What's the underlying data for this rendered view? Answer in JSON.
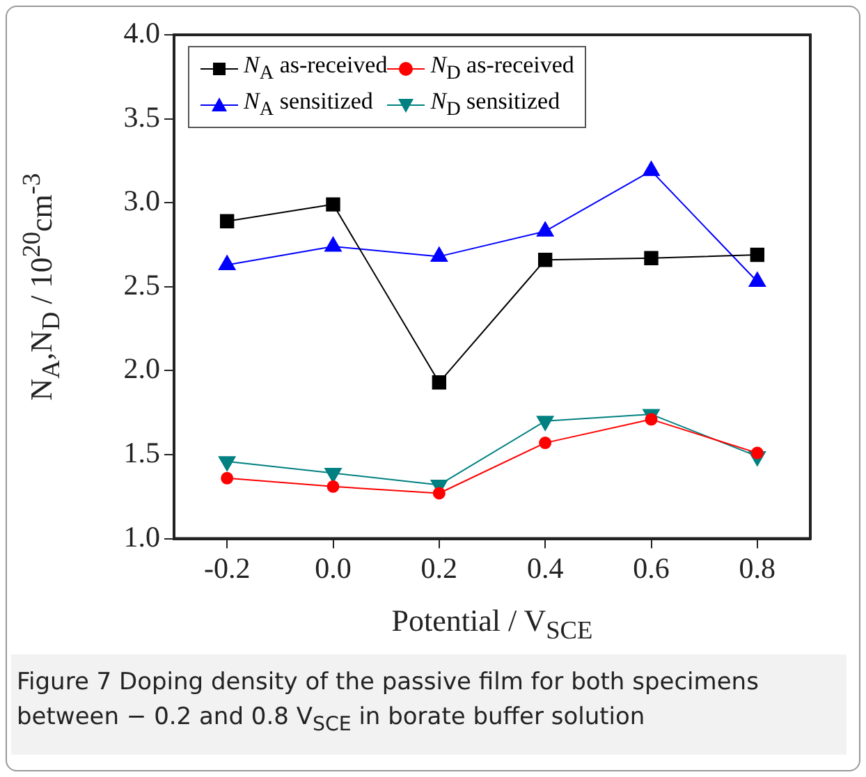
{
  "chart_data": {
    "type": "line",
    "xlabel": "Potential / V$_{SCE}$",
    "ylabel": "N$_{A}$,N$_{D}$ / 10$^{20}$cm$^{-3}$",
    "x": [
      -0.2,
      0,
      0.2,
      0.4,
      0.6,
      0.8
    ],
    "series": [
      {
        "name": "N$_{A}$  as-received",
        "color": "#000000",
        "marker": "square",
        "values": [
          2.89,
          2.99,
          1.93,
          2.66,
          2.67,
          2.69
        ]
      },
      {
        "name": "N$_{D}$  as-received",
        "color": "#ff0000",
        "marker": "circle",
        "values": [
          1.36,
          1.31,
          1.27,
          1.57,
          1.71,
          1.51
        ]
      },
      {
        "name": "N$_{A}$ sensitized",
        "color": "#0000ff",
        "marker": "triangle",
        "values": [
          2.63,
          2.74,
          2.68,
          2.83,
          3.19,
          2.53
        ]
      },
      {
        "name": "N$_{D}$ sensitized",
        "color": "#008080",
        "marker": "triangle-down",
        "values": [
          1.46,
          1.39,
          1.32,
          1.7,
          1.74,
          1.49
        ]
      }
    ],
    "xlim": [
      -0.3,
      0.9
    ],
    "xticks": [
      {
        "value": -0.2,
        "label": "-0.2"
      },
      {
        "value": 0,
        "label": "0.0"
      },
      {
        "value": 0.2,
        "label": "0.2"
      },
      {
        "value": 0.4,
        "label": "0.4"
      },
      {
        "value": 0.6,
        "label": "0.6"
      },
      {
        "value": 0.8,
        "label": "0.8"
      }
    ],
    "ylim": [
      1,
      4
    ],
    "yticks": [
      {
        "value": 1,
        "label": "1.0"
      },
      {
        "value": 1.5,
        "label": "1.5"
      },
      {
        "value": 2,
        "label": "2.0"
      },
      {
        "value": 2.5,
        "label": "2.5"
      },
      {
        "value": 3,
        "label": "3.0"
      },
      {
        "value": 3.5,
        "label": "3.5"
      },
      {
        "value": 4,
        "label": "4.0"
      }
    ],
    "grid": false,
    "legend": "top left",
    "line_style": "solid",
    "annotations": [
      "Figure 7  Doping density of the passive film for both specimens between − 0.2 and 0.8 V$_{SCE}$ in borate buffer solution"
    ]
  }
}
